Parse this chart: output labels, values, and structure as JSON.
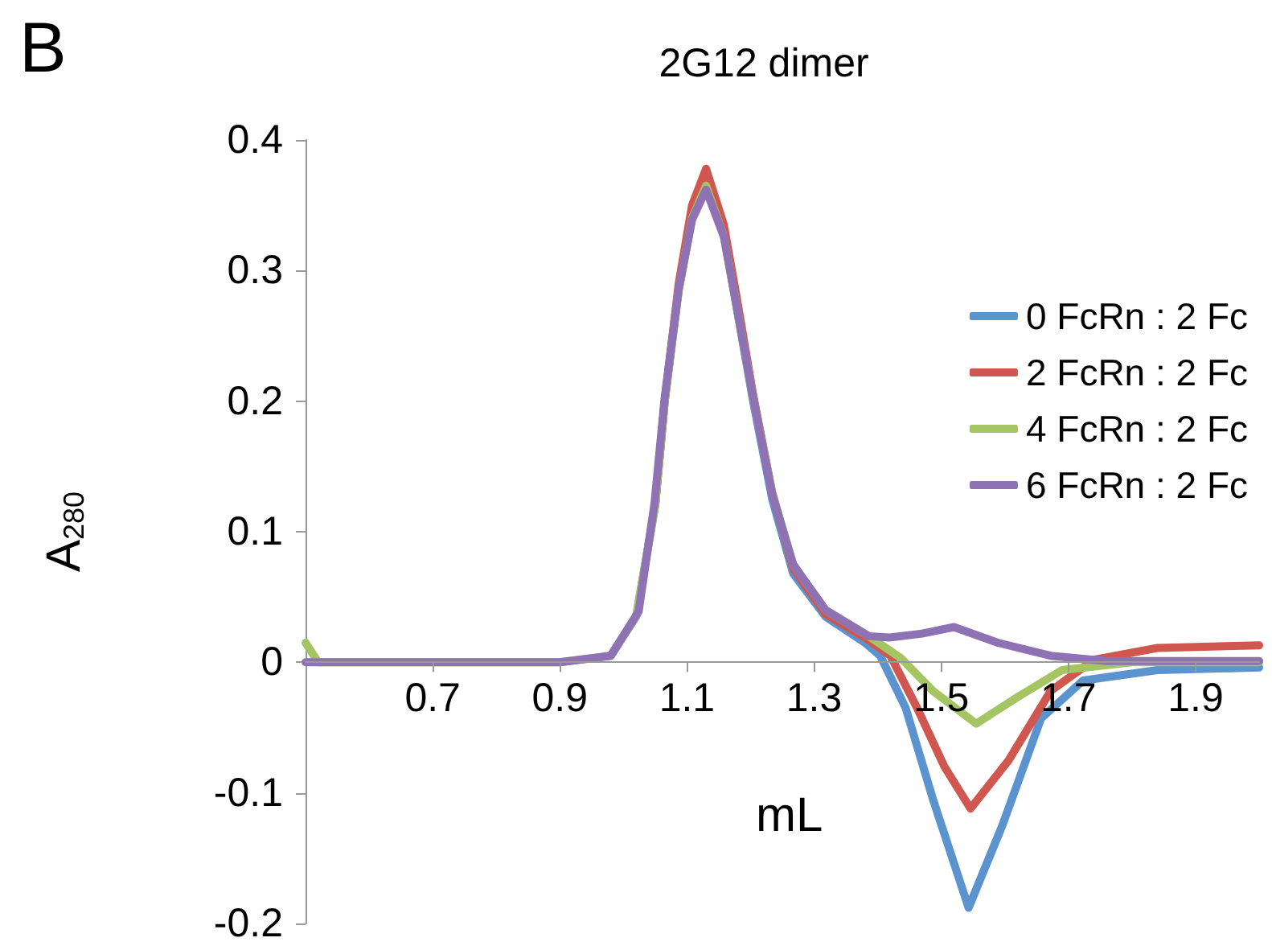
{
  "chart_data": {
    "type": "line",
    "title": "2G12 dimer",
    "xlabel": "mL",
    "ylabel": "A$_{280}$",
    "annotations": [
      "B"
    ],
    "xlim": [
      0.5,
      2.0
    ],
    "xticks": [
      0.7,
      0.9,
      1.1,
      1.3,
      1.5,
      1.7,
      1.9
    ],
    "ylim": [
      -0.2,
      0.4
    ],
    "yticks": [
      -0.2,
      -0.1,
      0,
      0.1,
      0.2,
      0.3,
      0.4
    ],
    "grid": false,
    "legend": "top right",
    "marker": "none",
    "line_style": "solid",
    "series": [
      {
        "name": "0 FcRn : 2 Fc",
        "color": "#5b93cf",
        "x": [
          0.98,
          1.02,
          1.05,
          1.065,
          1.087,
          1.108,
          1.13,
          1.158,
          1.178,
          1.204,
          1.234,
          1.267,
          1.318,
          1.38,
          1.404,
          1.444,
          1.487,
          1.543,
          1.596,
          1.657,
          1.723,
          1.84,
          2.0
        ],
        "values": [
          0.005,
          0.035,
          0.12,
          0.2,
          0.285,
          0.34,
          0.37,
          0.328,
          0.272,
          0.2,
          0.125,
          0.068,
          0.035,
          0.015,
          0.005,
          -0.035,
          -0.105,
          -0.188,
          -0.125,
          -0.043,
          -0.014,
          -0.006,
          -0.004
        ]
      },
      {
        "name": "2 FcRn : 2 Fc",
        "color": "#d0574f",
        "x": [
          1.05,
          1.065,
          1.087,
          1.108,
          1.13,
          1.158,
          1.178,
          1.204,
          1.234,
          1.267,
          1.318,
          1.386,
          1.42,
          1.462,
          1.505,
          1.546,
          1.606,
          1.672,
          1.74,
          1.84,
          2.0
        ],
        "values": [
          0.12,
          0.2,
          0.29,
          0.35,
          0.378,
          0.335,
          0.28,
          0.205,
          0.13,
          0.072,
          0.037,
          0.017,
          0.005,
          -0.035,
          -0.08,
          -0.112,
          -0.075,
          -0.022,
          0.002,
          0.011,
          0.013
        ]
      },
      {
        "name": "4 FcRn : 2 Fc",
        "color": "#a5c563",
        "x": [
          0.5,
          0.52,
          0.9,
          0.98,
          1.02,
          1.05,
          1.065,
          1.087,
          1.108,
          1.13,
          1.158,
          1.178,
          1.204,
          1.234,
          1.267,
          1.318,
          1.386,
          1.437,
          1.487,
          1.555,
          1.622,
          1.69,
          1.8,
          2.0
        ],
        "values": [
          0.015,
          0,
          0,
          0.005,
          0.035,
          0.12,
          0.2,
          0.285,
          0.34,
          0.365,
          0.326,
          0.273,
          0.203,
          0.13,
          0.075,
          0.04,
          0.02,
          0.003,
          -0.022,
          -0.047,
          -0.026,
          -0.006,
          0,
          0
        ]
      },
      {
        "name": "6 FcRn : 2 Fc",
        "color": "#8e72b4",
        "x": [
          0.5,
          0.9,
          0.98,
          1.024,
          1.049,
          1.065,
          1.087,
          1.108,
          1.13,
          1.158,
          1.178,
          1.204,
          1.234,
          1.267,
          1.318,
          1.386,
          1.419,
          1.47,
          1.52,
          1.589,
          1.672,
          1.76,
          2.0
        ],
        "values": [
          0,
          0,
          0.005,
          0.039,
          0.122,
          0.203,
          0.286,
          0.339,
          0.362,
          0.326,
          0.273,
          0.203,
          0.129,
          0.075,
          0.04,
          0.02,
          0.019,
          0.022,
          0.027,
          0.015,
          0.005,
          0.001,
          0.001
        ]
      }
    ]
  }
}
